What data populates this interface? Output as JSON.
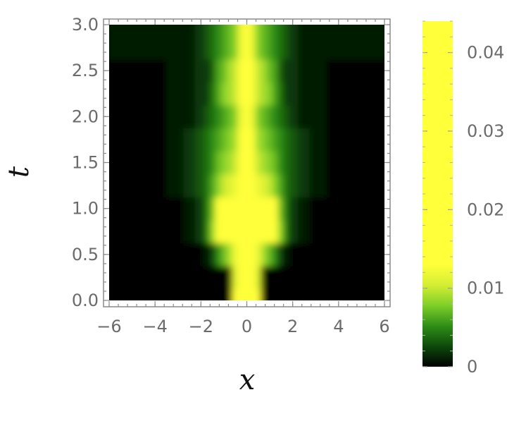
{
  "chart_data": {
    "type": "heatmap",
    "title": "",
    "xlabel": "x",
    "ylabel": "t",
    "xlim": [
      -6.2,
      6.2
    ],
    "ylim": [
      -0.05,
      3.05
    ],
    "xticks": [
      {
        "value": -6,
        "label": "−6"
      },
      {
        "value": -4,
        "label": "−4"
      },
      {
        "value": -2,
        "label": "−2"
      },
      {
        "value": 0,
        "label": "0"
      },
      {
        "value": 2,
        "label": "2"
      },
      {
        "value": 4,
        "label": "4"
      },
      {
        "value": 6,
        "label": "6"
      }
    ],
    "yticks": [
      {
        "value": 0.0,
        "label": "0.0"
      },
      {
        "value": 0.5,
        "label": "0.5"
      },
      {
        "value": 1.0,
        "label": "1.0"
      },
      {
        "value": 1.5,
        "label": "1.5"
      },
      {
        "value": 2.0,
        "label": "2.0"
      },
      {
        "value": 2.5,
        "label": "2.5"
      },
      {
        "value": 3.0,
        "label": "3.0"
      }
    ],
    "colorbar": {
      "range": [
        0,
        0.044
      ],
      "ticks": [
        {
          "value": 0,
          "label": "0"
        },
        {
          "value": 0.01,
          "label": "0.01"
        },
        {
          "value": 0.02,
          "label": "0.02"
        },
        {
          "value": 0.03,
          "label": "0.03"
        },
        {
          "value": 0.04,
          "label": "0.04"
        }
      ],
      "colors": [
        "#000000",
        "#0d4a0a",
        "#2f8e16",
        "#7fcf28",
        "#d4ee34",
        "#ffff3a"
      ],
      "saturation_value": 0.013
    },
    "x_range": [
      -6,
      6
    ],
    "t_range": [
      0,
      3
    ],
    "x_values": [
      -6,
      -5,
      -4,
      -3,
      -2.5,
      -2,
      -1.75,
      -1.5,
      -1.25,
      -1,
      -0.75,
      -0.5,
      -0.25,
      0,
      0.25,
      0.5,
      0.75,
      1,
      1.25,
      1.5,
      1.75,
      2,
      2.5,
      3,
      4,
      5,
      6
    ],
    "t_values": [
      0,
      0.25,
      0.5,
      0.75,
      1,
      1.25,
      1.5,
      1.75,
      2,
      2.25,
      2.5,
      2.75,
      3
    ],
    "values": [
      [
        0,
        0,
        0,
        0,
        0,
        0,
        0,
        0,
        0,
        0,
        0,
        0.013,
        0.03,
        0.044,
        0.03,
        0.013,
        0,
        0,
        0,
        0,
        0,
        0,
        0,
        0,
        0,
        0,
        0
      ],
      [
        0,
        0,
        0,
        0,
        0,
        0,
        0,
        0,
        0,
        0,
        0.001,
        0.011,
        0.03,
        0.044,
        0.03,
        0.011,
        0.001,
        0,
        0,
        0,
        0,
        0,
        0,
        0,
        0,
        0,
        0
      ],
      [
        0,
        0,
        0,
        0,
        0,
        0,
        0.001,
        0.002,
        0.005,
        0.007,
        0.009,
        0.012,
        0.025,
        0.044,
        0.025,
        0.012,
        0.009,
        0.007,
        0.005,
        0.002,
        0.001,
        0,
        0,
        0,
        0,
        0,
        0
      ],
      [
        0,
        0,
        0,
        0,
        0.001,
        0.002,
        0.004,
        0.008,
        0.02,
        0.03,
        0.035,
        0.04,
        0.044,
        0.044,
        0.044,
        0.04,
        0.035,
        0.03,
        0.02,
        0.008,
        0.004,
        0.002,
        0.001,
        0,
        0,
        0,
        0
      ],
      [
        0,
        0,
        0,
        0,
        0.001,
        0.002,
        0.004,
        0.007,
        0.02,
        0.03,
        0.035,
        0.038,
        0.041,
        0.044,
        0.041,
        0.038,
        0.035,
        0.03,
        0.02,
        0.007,
        0.004,
        0.002,
        0.001,
        0,
        0,
        0,
        0
      ],
      [
        0,
        0,
        0,
        0.001,
        0.002,
        0.003,
        0.004,
        0.006,
        0.008,
        0.01,
        0.011,
        0.012,
        0.02,
        0.044,
        0.02,
        0.012,
        0.011,
        0.01,
        0.008,
        0.006,
        0.004,
        0.003,
        0.002,
        0.001,
        0,
        0,
        0
      ],
      [
        0,
        0,
        0,
        0.001,
        0.002,
        0.003,
        0.004,
        0.005,
        0.007,
        0.008,
        0.009,
        0.01,
        0.016,
        0.044,
        0.016,
        0.01,
        0.009,
        0.008,
        0.007,
        0.005,
        0.004,
        0.003,
        0.002,
        0.001,
        0,
        0,
        0
      ],
      [
        0,
        0,
        0,
        0.001,
        0.002,
        0.003,
        0.004,
        0.005,
        0.006,
        0.007,
        0.008,
        0.009,
        0.014,
        0.044,
        0.014,
        0.009,
        0.008,
        0.007,
        0.006,
        0.005,
        0.004,
        0.003,
        0.002,
        0.001,
        0,
        0,
        0
      ],
      [
        0,
        0,
        0,
        0.001,
        0.001,
        0.002,
        0.003,
        0.004,
        0.005,
        0.006,
        0.007,
        0.008,
        0.012,
        0.044,
        0.012,
        0.008,
        0.007,
        0.006,
        0.005,
        0.004,
        0.003,
        0.002,
        0.001,
        0.001,
        0,
        0,
        0
      ],
      [
        0,
        0,
        0,
        0.001,
        0.001,
        0.002,
        0.002,
        0.004,
        0.006,
        0.008,
        0.009,
        0.01,
        0.014,
        0.044,
        0.014,
        0.01,
        0.009,
        0.008,
        0.006,
        0.004,
        0.002,
        0.002,
        0.001,
        0.001,
        0,
        0,
        0
      ],
      [
        0,
        0,
        0,
        0.001,
        0.001,
        0.002,
        0.002,
        0.003,
        0.006,
        0.007,
        0.009,
        0.01,
        0.014,
        0.044,
        0.014,
        0.01,
        0.009,
        0.007,
        0.006,
        0.003,
        0.002,
        0.002,
        0.001,
        0.001,
        0,
        0,
        0
      ],
      [
        0.001,
        0.001,
        0.001,
        0.001,
        0.001,
        0.002,
        0.003,
        0.004,
        0.005,
        0.006,
        0.007,
        0.008,
        0.012,
        0.044,
        0.012,
        0.008,
        0.007,
        0.006,
        0.005,
        0.004,
        0.003,
        0.002,
        0.001,
        0.001,
        0.001,
        0.001,
        0.001
      ],
      [
        0.001,
        0.001,
        0.001,
        0.001,
        0.001,
        0.002,
        0.003,
        0.004,
        0.005,
        0.006,
        0.007,
        0.008,
        0.012,
        0.044,
        0.012,
        0.008,
        0.007,
        0.006,
        0.005,
        0.004,
        0.003,
        0.002,
        0.001,
        0.001,
        0.001,
        0.001,
        0.001
      ]
    ]
  }
}
